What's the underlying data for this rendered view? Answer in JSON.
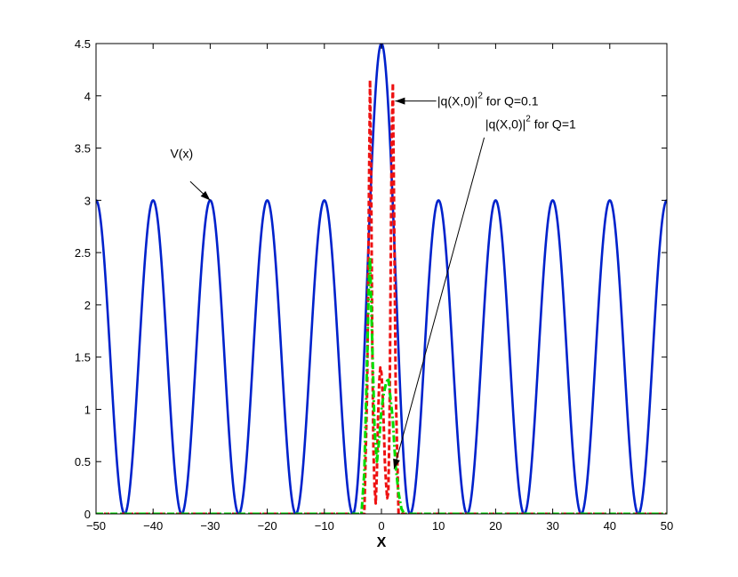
{
  "chart_data": {
    "type": "line",
    "xlabel": "X",
    "ylabel": "",
    "title": "",
    "xlim": [
      -50,
      50
    ],
    "ylim": [
      0,
      4.5
    ],
    "grid": false,
    "x_ticks": [
      -50,
      -40,
      -30,
      -20,
      -10,
      0,
      10,
      20,
      30,
      40,
      50
    ],
    "x_tick_labels": [
      "−50",
      "−40",
      "−30",
      "−20",
      "−10",
      "0",
      "10",
      "20",
      "30",
      "40",
      "50"
    ],
    "y_ticks": [
      0,
      0.5,
      1,
      1.5,
      2,
      2.5,
      3,
      3.5,
      4,
      4.5
    ],
    "y_tick_labels": [
      "0",
      "0.5",
      "1",
      "1.5",
      "2",
      "2.5",
      "3",
      "3.5",
      "4",
      "4.5"
    ],
    "series": [
      {
        "key": "V",
        "color": "#0022cc",
        "style": "solid",
        "description": "periodic potential: 1.5*(1+cos(2*pi*x/10)) with central peak reaching 4.5 at x=0",
        "x": [
          -50,
          -47.5,
          -45,
          -42.5,
          -40,
          -37.5,
          -35,
          -32.5,
          -30,
          -27.5,
          -25,
          -22.5,
          -20,
          -17.5,
          -15,
          -12.5,
          -10,
          -7.5,
          -5,
          -2.5,
          0,
          2.5,
          5,
          7.5,
          10,
          12.5,
          15,
          17.5,
          20,
          22.5,
          25,
          27.5,
          30,
          32.5,
          35,
          37.5,
          40,
          42.5,
          45,
          47.5,
          50
        ],
        "y": [
          3,
          1.5,
          0,
          1.5,
          3,
          1.5,
          0,
          1.5,
          3,
          1.5,
          0,
          1.5,
          3,
          1.5,
          0,
          1.5,
          3,
          1.5,
          0,
          2.0,
          4.5,
          2.0,
          0,
          1.5,
          3,
          1.5,
          0,
          1.5,
          3,
          1.5,
          0,
          1.5,
          3,
          1.5,
          0,
          1.5,
          3,
          1.5,
          0,
          1.5,
          3
        ]
      },
      {
        "key": "Q01",
        "color": "#ee1111",
        "style": "dashed",
        "x": [
          -50,
          -3.0,
          -2.5,
          -2.2,
          -2.0,
          -1.8,
          -1.6,
          -1.4,
          -1.2,
          -1.0,
          -0.8,
          -0.6,
          -0.4,
          -0.2,
          0.0,
          0.2,
          0.4,
          0.6,
          0.8,
          1.0,
          1.2,
          1.4,
          1.6,
          1.8,
          2.0,
          2.2,
          2.5,
          3.0,
          50
        ],
        "y": [
          0,
          0,
          1.2,
          3.0,
          4.15,
          3.2,
          1.6,
          0.6,
          0.25,
          0.1,
          0.4,
          0.9,
          1.25,
          1.4,
          1.35,
          1.15,
          0.85,
          0.5,
          0.3,
          0.15,
          0.2,
          0.8,
          2.2,
          3.6,
          4.12,
          3.0,
          1.2,
          0,
          0
        ]
      },
      {
        "key": "Q1",
        "color": "#00dd00",
        "style": "dashdot",
        "x": [
          -50,
          -3.5,
          -3.0,
          -2.5,
          -2.2,
          -2.0,
          -1.6,
          -1.2,
          -0.8,
          -0.4,
          0.0,
          0.4,
          0.8,
          1.2,
          1.6,
          2.0,
          2.2,
          2.5,
          3.0,
          3.5,
          4.0,
          50
        ],
        "y": [
          0,
          0,
          0.4,
          1.5,
          2.2,
          2.45,
          1.6,
          0.8,
          0.5,
          0.7,
          1.0,
          1.15,
          1.25,
          1.3,
          1.1,
          0.9,
          0.7,
          0.45,
          0.2,
          0.05,
          0,
          0
        ]
      }
    ],
    "annotations": [
      {
        "key": "v",
        "text": "V(x)",
        "text_x": -37,
        "text_y": 3.45,
        "arrow_from": [
          -33.5,
          3.18
        ],
        "arrow_to": [
          -30,
          3.0
        ]
      },
      {
        "key": "q01",
        "text": "|q(X,0)|",
        "sup": "2",
        "suffix": " for Q=0.1",
        "text_x": 9.8,
        "text_y": 3.95,
        "arrow_from": [
          9.6,
          3.95
        ],
        "arrow_to": [
          2.4,
          3.95
        ]
      },
      {
        "key": "q1",
        "text": "|q(X,0)|",
        "sup": "2",
        "suffix": " for Q=1",
        "text_x": 18.2,
        "text_y": 3.73,
        "arrow_from": [
          18.0,
          3.6
        ],
        "arrow_to": [
          2.2,
          0.43
        ]
      }
    ]
  }
}
